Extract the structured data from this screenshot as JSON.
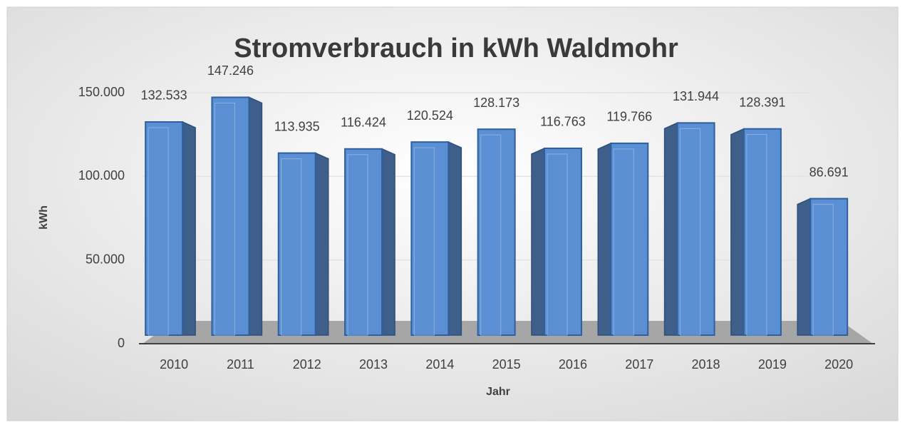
{
  "chart_data": {
    "type": "bar3d",
    "title": "Stromverbrauch in kWh Waldmohr",
    "x_label": "Jahr",
    "y_label": "kWh",
    "categories": [
      "2010",
      "2011",
      "2012",
      "2013",
      "2014",
      "2015",
      "2016",
      "2017",
      "2018",
      "2019",
      "2020"
    ],
    "values": [
      132533,
      147246,
      113935,
      116424,
      120524,
      128173,
      116763,
      119766,
      131944,
      128391,
      86691
    ],
    "value_labels": [
      "132.533",
      "147.246",
      "113.935",
      "116.424",
      "120.524",
      "128.173",
      "116.763",
      "119.766",
      "131.944",
      "128.391",
      "86.691"
    ],
    "color": "#5b8fd4",
    "ylim": [
      0,
      150000
    ],
    "yticks": [
      0,
      {
        "value": 50000,
        "label": "50.000"
      },
      {
        "value": 100000,
        "label": "100.000"
      },
      {
        "value": 150000,
        "label": "150.000"
      }
    ],
    "grid": true
  }
}
